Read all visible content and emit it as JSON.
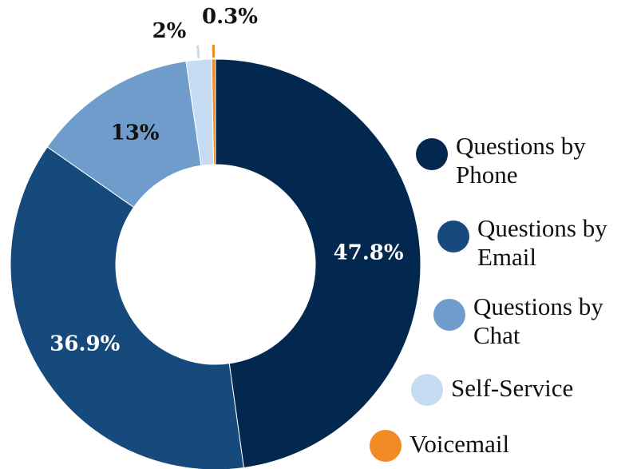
{
  "chart_data": {
    "type": "donut",
    "categories": [
      "Questions by Phone",
      "Questions by Email",
      "Questions by Chat",
      "Self-Service",
      "Voicemail"
    ],
    "values": [
      47.8,
      36.9,
      13,
      2,
      0.3
    ],
    "value_labels": [
      "47.8%",
      "36.9%",
      "13%",
      "2%",
      "0.3%"
    ],
    "colors": [
      "#03284f",
      "#174a7c",
      "#6f9ccb",
      "#c5dcf3",
      "#f28a26"
    ]
  }
}
